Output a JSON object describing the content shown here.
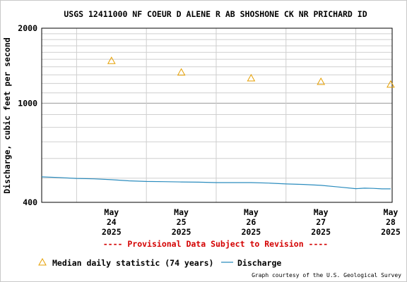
{
  "chart_data": {
    "type": "line",
    "title": "USGS 12411000 NF COEUR D ALENE R AB SHOSHONE CK NR PRICHARD ID",
    "ylabel": "Discharge, cubic feet per second",
    "y_scale": "log",
    "ylim": [
      400,
      2000
    ],
    "y_tick_labels": [
      "2000",
      "1000",
      "400"
    ],
    "x_ticks": [
      {
        "month": "May",
        "day": "24",
        "year": "2025"
      },
      {
        "month": "May",
        "day": "25",
        "year": "2025"
      },
      {
        "month": "May",
        "day": "26",
        "year": "2025"
      },
      {
        "month": "May",
        "day": "27",
        "year": "2025"
      },
      {
        "month": "May",
        "day": "28",
        "year": "2025"
      }
    ],
    "xlim": [
      "2025-05-23 12:00",
      "2025-05-28 12:30"
    ],
    "grid": true,
    "series": [
      {
        "name": "Median daily statistic (74 years)",
        "kind": "triangle-markers",
        "color": "#e69f00",
        "points": [
          {
            "x": "2025-05-24",
            "y": 1480
          },
          {
            "x": "2025-05-25",
            "y": 1330
          },
          {
            "x": "2025-05-26",
            "y": 1260
          },
          {
            "x": "2025-05-27",
            "y": 1220
          },
          {
            "x": "2025-05-28",
            "y": 1190
          }
        ]
      },
      {
        "name": "Discharge",
        "kind": "line",
        "color": "#2b8cbe",
        "points": [
          {
            "x": "2025-05-23 12:00",
            "y": 506
          },
          {
            "x": "2025-05-23 18:00",
            "y": 503
          },
          {
            "x": "2025-05-24 00:00",
            "y": 499
          },
          {
            "x": "2025-05-24 06:00",
            "y": 497
          },
          {
            "x": "2025-05-24 12:00",
            "y": 493
          },
          {
            "x": "2025-05-24 18:00",
            "y": 488
          },
          {
            "x": "2025-05-25 00:00",
            "y": 485
          },
          {
            "x": "2025-05-25 06:00",
            "y": 484
          },
          {
            "x": "2025-05-25 12:00",
            "y": 483
          },
          {
            "x": "2025-05-25 18:00",
            "y": 482
          },
          {
            "x": "2025-05-26 00:00",
            "y": 480
          },
          {
            "x": "2025-05-26 06:00",
            "y": 480
          },
          {
            "x": "2025-05-26 12:00",
            "y": 480
          },
          {
            "x": "2025-05-26 18:00",
            "y": 478
          },
          {
            "x": "2025-05-27 00:00",
            "y": 474
          },
          {
            "x": "2025-05-27 06:00",
            "y": 472
          },
          {
            "x": "2025-05-27 12:00",
            "y": 468
          },
          {
            "x": "2025-05-27 18:00",
            "y": 461
          },
          {
            "x": "2025-05-28 00:00",
            "y": 454
          },
          {
            "x": "2025-05-28 03:00",
            "y": 456
          },
          {
            "x": "2025-05-28 06:00",
            "y": 455
          },
          {
            "x": "2025-05-28 09:00",
            "y": 453
          },
          {
            "x": "2025-05-28 12:00",
            "y": 453
          }
        ]
      }
    ],
    "provisional_note": "---- Provisional Data Subject to Revision ----",
    "legend": [
      {
        "label": "Median daily statistic (74 years)",
        "marker": "triangle",
        "color": "#e69f00"
      },
      {
        "label": "Discharge",
        "marker": "line",
        "color": "#2b8cbe"
      }
    ],
    "legend_position": "bottom",
    "credit": "Graph courtesy of the U.S. Geological Survey"
  }
}
